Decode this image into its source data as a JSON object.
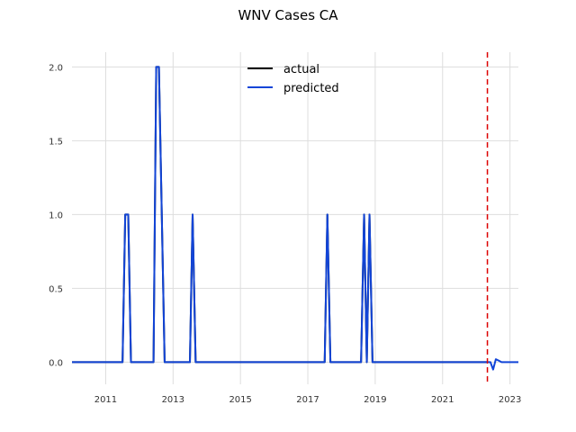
{
  "chart_data": {
    "type": "line",
    "title": "WNV Cases CA",
    "xlabel": "",
    "ylabel": "",
    "x_axis_type": "time",
    "xlim": [
      2010.0,
      2023.25
    ],
    "ylim": [
      -0.15,
      2.1
    ],
    "x_ticks": [
      2011,
      2013,
      2015,
      2017,
      2019,
      2021,
      2023
    ],
    "x_tick_labels": [
      "2011",
      "2013",
      "2015",
      "2017",
      "2019",
      "2021",
      "2023"
    ],
    "y_ticks": [
      0.0,
      0.5,
      1.0,
      1.5,
      2.0
    ],
    "y_tick_labels": [
      "0.0",
      "0.5",
      "1.0",
      "1.5",
      "2.0"
    ],
    "grid": true,
    "legend_position": "top-center",
    "series": [
      {
        "name": "actual",
        "color": "#000000",
        "points": [
          [
            2010.0,
            0
          ],
          [
            2011.5,
            0
          ],
          [
            2011.58,
            1
          ],
          [
            2011.67,
            1
          ],
          [
            2011.75,
            0
          ],
          [
            2012.42,
            0
          ],
          [
            2012.5,
            2
          ],
          [
            2012.58,
            2
          ],
          [
            2012.75,
            0
          ],
          [
            2013.5,
            0
          ],
          [
            2013.58,
            1
          ],
          [
            2013.67,
            0
          ],
          [
            2017.5,
            0
          ],
          [
            2017.58,
            1
          ],
          [
            2017.67,
            0
          ],
          [
            2018.58,
            0
          ],
          [
            2018.67,
            1
          ],
          [
            2018.75,
            0
          ],
          [
            2018.83,
            1
          ],
          [
            2018.92,
            0
          ],
          [
            2022.33,
            0
          ]
        ]
      },
      {
        "name": "predicted",
        "color": "#1245d8",
        "points": [
          [
            2010.0,
            0
          ],
          [
            2011.5,
            0
          ],
          [
            2011.58,
            1
          ],
          [
            2011.67,
            1
          ],
          [
            2011.75,
            0
          ],
          [
            2012.42,
            0
          ],
          [
            2012.5,
            2
          ],
          [
            2012.58,
            2
          ],
          [
            2012.75,
            0
          ],
          [
            2013.5,
            0
          ],
          [
            2013.58,
            1
          ],
          [
            2013.67,
            0
          ],
          [
            2017.5,
            0
          ],
          [
            2017.58,
            1
          ],
          [
            2017.67,
            0
          ],
          [
            2018.58,
            0
          ],
          [
            2018.67,
            1
          ],
          [
            2018.75,
            0
          ],
          [
            2018.83,
            1
          ],
          [
            2018.92,
            0
          ],
          [
            2022.33,
            0
          ],
          [
            2022.42,
            0
          ],
          [
            2022.5,
            -0.05
          ],
          [
            2022.58,
            0.02
          ],
          [
            2022.67,
            0.01
          ],
          [
            2022.75,
            0
          ],
          [
            2023.25,
            0
          ]
        ]
      }
    ],
    "vertical_line": {
      "x": 2022.33,
      "color": "#dd0000",
      "style": "dashed"
    }
  }
}
